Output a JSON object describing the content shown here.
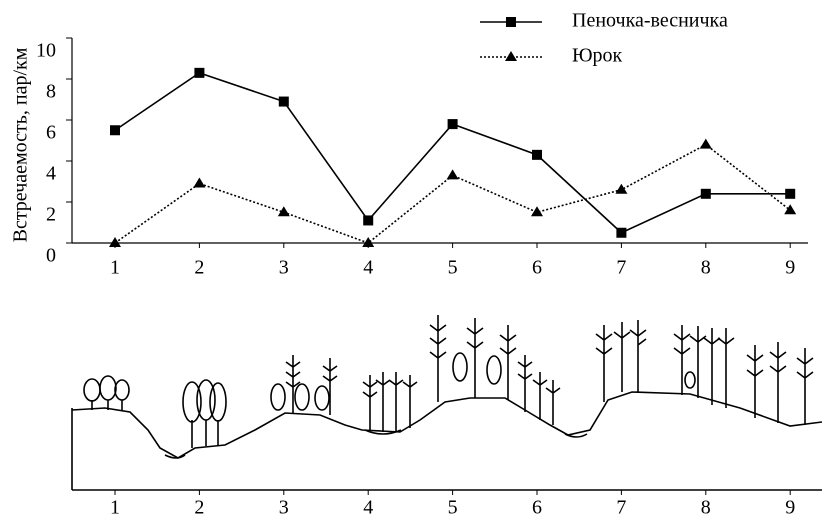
{
  "chart_data": {
    "type": "line",
    "y_label": "Встречаемость, пар/км",
    "categories": [
      "1",
      "2",
      "3",
      "4",
      "5",
      "6",
      "7",
      "8",
      "9"
    ],
    "series": [
      {
        "name": "Пеночка-весничка",
        "color": "#000000",
        "marker": "square",
        "dash": "solid",
        "values": [
          5.5,
          8.3,
          6.9,
          1.1,
          5.8,
          4.3,
          0.5,
          2.4,
          2.4
        ]
      },
      {
        "name": "Юрок",
        "color": "#000000",
        "marker": "triangle",
        "dash": "dotted",
        "values": [
          0,
          2.9,
          1.5,
          0,
          3.3,
          1.5,
          2.6,
          4.8,
          1.6
        ]
      }
    ],
    "ylim": [
      0,
      10
    ],
    "yticks": [
      0,
      2,
      4,
      6,
      8,
      10
    ],
    "grid": false
  }
}
